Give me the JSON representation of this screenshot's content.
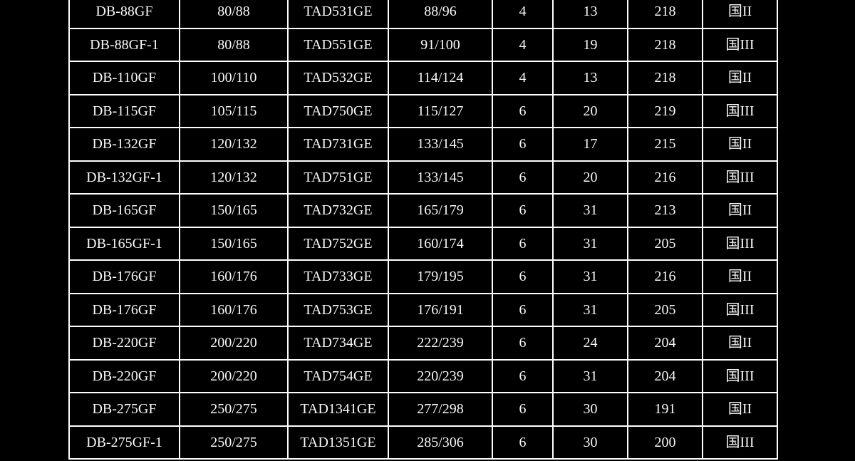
{
  "page": {
    "background_color": "#000000"
  },
  "table": {
    "border_color": "#ffffff",
    "text_color": "#f8f8f8",
    "cell_background": "#000000",
    "rows": [
      [
        "DB-88GF",
        "80/88",
        "TAD531GE",
        "88/96",
        "4",
        "13",
        "218",
        "国II"
      ],
      [
        "DB-88GF-1",
        "80/88",
        "TAD551GE",
        "91/100",
        "4",
        "19",
        "218",
        "国III"
      ],
      [
        "DB-110GF",
        "100/110",
        "TAD532GE",
        "114/124",
        "4",
        "13",
        "218",
        "国II"
      ],
      [
        "DB-115GF",
        "105/115",
        "TAD750GE",
        "115/127",
        "6",
        "20",
        "219",
        "国III"
      ],
      [
        "DB-132GF",
        "120/132",
        "TAD731GE",
        "133/145",
        "6",
        "17",
        "215",
        "国II"
      ],
      [
        "DB-132GF-1",
        "120/132",
        "TAD751GE",
        "133/145",
        "6",
        "20",
        "216",
        "国III"
      ],
      [
        "DB-165GF",
        "150/165",
        "TAD732GE",
        "165/179",
        "6",
        "31",
        "213",
        "国II"
      ],
      [
        "DB-165GF-1",
        "150/165",
        "TAD752GE",
        "160/174",
        "6",
        "31",
        "205",
        "国III"
      ],
      [
        "DB-176GF",
        "160/176",
        "TAD733GE",
        "179/195",
        "6",
        "31",
        "216",
        "国II"
      ],
      [
        "DB-176GF",
        "160/176",
        "TAD753GE",
        "176/191",
        "6",
        "31",
        "205",
        "国III"
      ],
      [
        "DB-220GF",
        "200/220",
        "TAD734GE",
        "222/239",
        "6",
        "24",
        "204",
        "国II"
      ],
      [
        "DB-220GF",
        "200/220",
        "TAD754GE",
        "220/239",
        "6",
        "31",
        "204",
        "国III"
      ],
      [
        "DB-275GF",
        "250/275",
        "TAD1341GE",
        "277/298",
        "6",
        "30",
        "191",
        "国II"
      ],
      [
        "DB-275GF-1",
        "250/275",
        "TAD1351GE",
        "285/306",
        "6",
        "30",
        "200",
        "国III"
      ]
    ]
  }
}
